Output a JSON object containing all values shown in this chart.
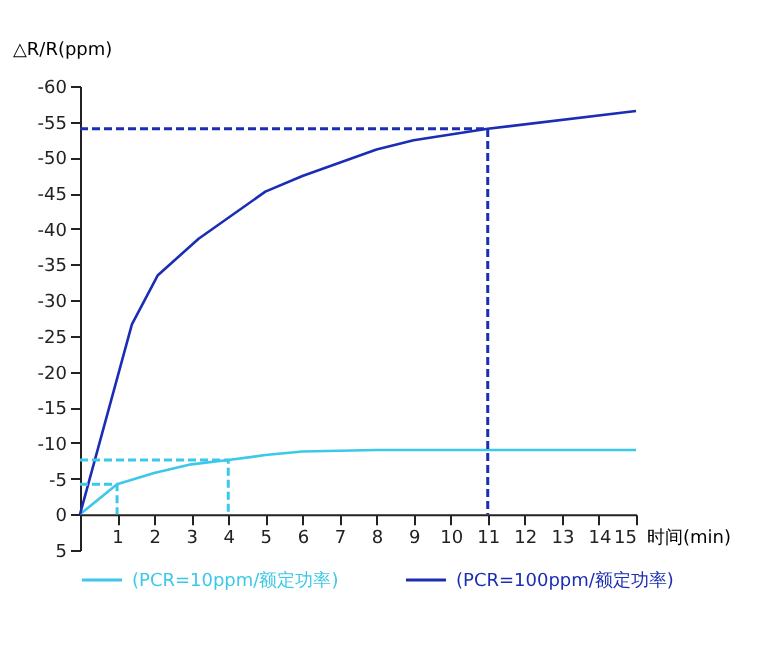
{
  "chart_data": {
    "type": "line",
    "xlabel": "时间(min)",
    "ylabel": "△R/R(ppm)",
    "xlim": [
      0,
      15
    ],
    "xticks": [
      1,
      2,
      3,
      4,
      5,
      6,
      7,
      8,
      9,
      10,
      11,
      12,
      13,
      14,
      15
    ],
    "ylim": [
      5,
      -60
    ],
    "yticks": [
      5,
      0,
      -5,
      -10,
      -15,
      -20,
      -25,
      -30,
      -35,
      -40,
      -45,
      -50,
      -55,
      -60
    ],
    "series": [
      {
        "name": "(PCR=10ppm/额定功率)",
        "color": "#3cc8e8",
        "x": [
          0,
          1,
          2,
          3,
          4,
          5,
          6,
          8,
          15
        ],
        "values": [
          0,
          -4.2,
          -5.8,
          -7,
          -7.6,
          -8.3,
          -8.8,
          -9,
          -9
        ]
      },
      {
        "name": "(PCR=100ppm/额定功率)",
        "color": "#1a2db4",
        "x": [
          0,
          1.4,
          2.1,
          3.2,
          5,
          6,
          8,
          9,
          11,
          15
        ],
        "values": [
          0,
          -26.6,
          -33.5,
          -38.6,
          -45.2,
          -47.4,
          -51.1,
          -52.4,
          -54,
          -56.5
        ]
      },
      {
        "type": "line",
        "color": "#3cc8e8",
        "line_style": "dashed",
        "x": [
          0,
          1,
          1
        ],
        "values": [
          -4.2,
          -4.2,
          0
        ]
      },
      {
        "type": "line",
        "color": "#3cc8e8",
        "line_style": "dashed",
        "x": [
          0,
          4,
          4
        ],
        "values": [
          -7.6,
          -7.6,
          0
        ]
      },
      {
        "type": "line",
        "color": "#1a2db4",
        "line_style": "dashed",
        "x": [
          0,
          11,
          11
        ],
        "values": [
          -54,
          -54,
          0
        ]
      }
    ],
    "legend": "bottom",
    "grid": false,
    "marker": "none",
    "line_style": "solid"
  }
}
